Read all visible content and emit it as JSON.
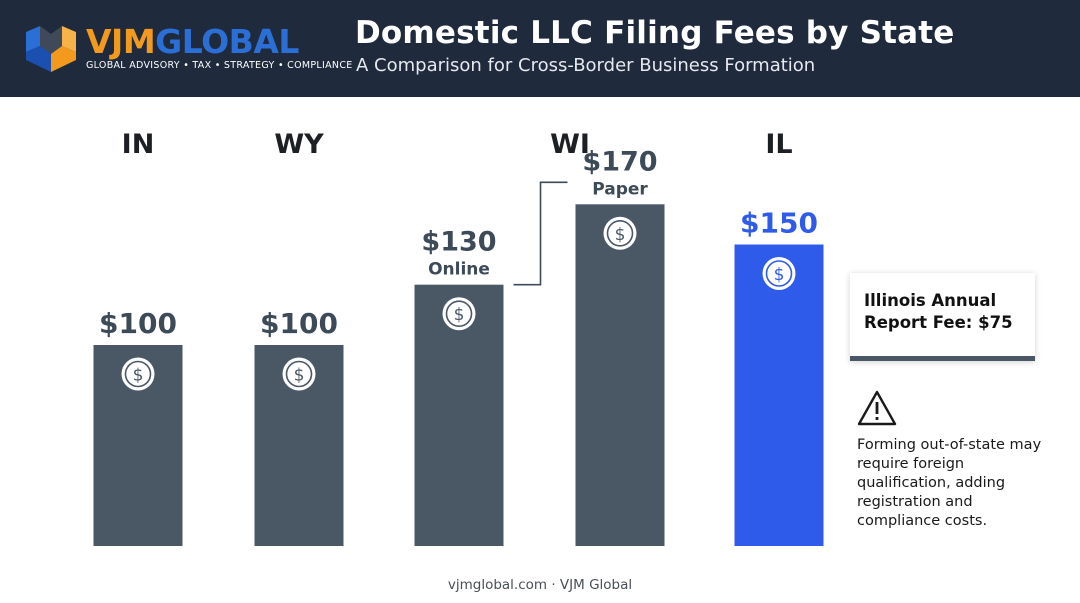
{
  "header": {
    "logo": {
      "word_part1": "VJM",
      "word_part2": "GLOBAL",
      "tagline": "GLOBAL ADVISORY • TAX • STRATEGY • COMPLIANCE"
    },
    "title": "Domestic LLC Filing Fees by State",
    "subtitle": "A Comparison for Cross-Border Business Formation"
  },
  "chart_data": {
    "type": "bar",
    "title": "Domestic LLC Filing Fees by State",
    "categories": [
      "IN",
      "WY",
      "WI",
      "IL"
    ],
    "bars": [
      {
        "state": "IN",
        "value": 100,
        "value_label": "$100",
        "sublabel": ""
      },
      {
        "state": "WY",
        "value": 100,
        "value_label": "$100",
        "sublabel": ""
      },
      {
        "state": "WI",
        "value": 130,
        "value_label": "$130",
        "sublabel": "Online"
      },
      {
        "state": "WI",
        "value": 170,
        "value_label": "$170",
        "sublabel": "Paper"
      },
      {
        "state": "IL",
        "value": 150,
        "value_label": "$150",
        "sublabel": ""
      }
    ],
    "ylim": [
      0,
      170
    ],
    "colors": {
      "default": "#4a5866",
      "highlight": "#2f5bea",
      "label": "#3d4a57",
      "highlight_label": "#2f5bea"
    },
    "highlight_state": "IL",
    "bar_icon": "dollar-coin-icon"
  },
  "callout": {
    "text": "Illinois Annual Report Fee: $75"
  },
  "note": {
    "icon": "warning-icon",
    "text": "Forming out-of-state may require foreign qualification, adding registration and compliance costs."
  },
  "footer": {
    "text": "vjmglobal.com · VJM Global"
  }
}
